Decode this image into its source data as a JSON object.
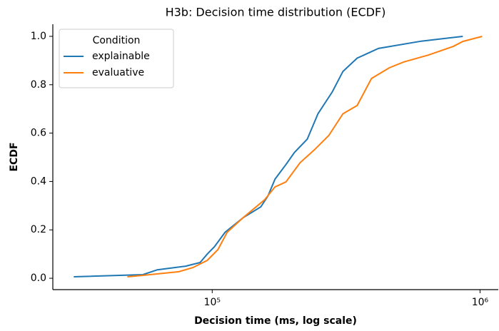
{
  "chart_data": {
    "type": "line",
    "title": "H3b: Decision time distribution (ECDF)",
    "x_label": "Decision time (ms, log scale)",
    "y_label": "ECDF",
    "x_log": true,
    "xlim": [
      25400,
      1170000
    ],
    "ylim": [
      -0.047,
      1.05
    ],
    "xticks": [
      {
        "value": 100000,
        "label": "10⁵"
      },
      {
        "value": 1000000,
        "label": "10⁶"
      }
    ],
    "yticks": [
      {
        "value": 0,
        "label": "0.0"
      },
      0.2,
      0.4,
      0.6,
      0.8,
      {
        "value": 1,
        "label": "1.0"
      }
    ],
    "legend": {
      "title": "Condition",
      "position": "upper left"
    },
    "series": [
      {
        "name": "explainable",
        "color": "#1f77b4",
        "x": [
          30400,
          55100,
          62400,
          79600,
          90100,
          95800,
          101900,
          111700,
          130300,
          151800,
          161400,
          171700,
          188400,
          202800,
          226400,
          248200,
          280700,
          307800,
          347700,
          417800,
          603500,
          862600
        ],
        "values": [
          0.006,
          0.015,
          0.035,
          0.05,
          0.065,
          0.1,
          0.13,
          0.19,
          0.25,
          0.295,
          0.34,
          0.41,
          0.47,
          0.52,
          0.575,
          0.68,
          0.77,
          0.855,
          0.91,
          0.95,
          0.98,
          1.0
        ]
      },
      {
        "name": "evaluative",
        "color": "#ff7f0e",
        "x": [
          48200,
          55100,
          75000,
          84700,
          95800,
          105000,
          113700,
          130300,
          156700,
          171700,
          188400,
          212900,
          240300,
          272300,
          307800,
          347700,
          393400,
          458500,
          518600,
          642700,
          796400,
          862600,
          1018600
        ],
        "values": [
          0.006,
          0.012,
          0.027,
          0.044,
          0.074,
          0.118,
          0.19,
          0.25,
          0.324,
          0.378,
          0.398,
          0.478,
          0.53,
          0.59,
          0.68,
          0.714,
          0.826,
          0.87,
          0.894,
          0.923,
          0.959,
          0.979,
          1.0
        ]
      }
    ]
  }
}
